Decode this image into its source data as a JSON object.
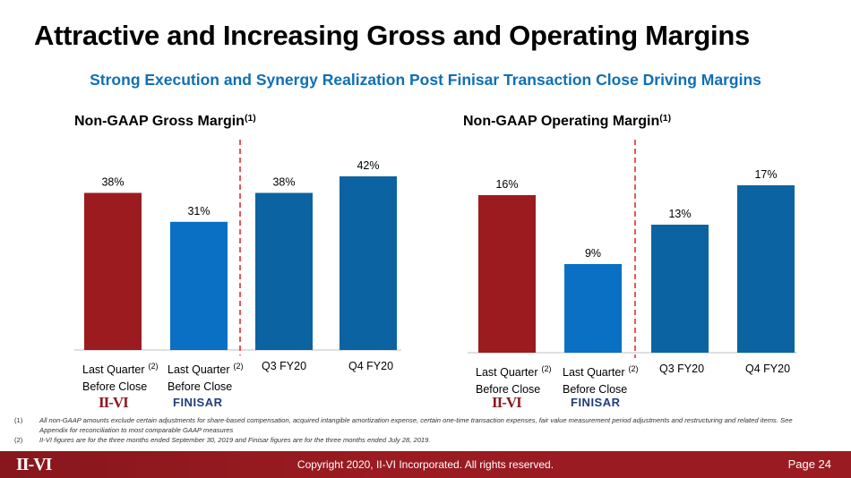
{
  "title": "Attractive and Increasing Gross and Operating Margins",
  "subtitle": "Strong Execution and Synergy Realization Post Finisar Transaction Close Driving Margins",
  "colors": {
    "red": "#9b1b1f",
    "lightblue": "#0a70c4",
    "blue": "#0b64a1",
    "dashed": "#e03030"
  },
  "logos": {
    "iivi": "II-VI",
    "finisar": "FINISAR"
  },
  "chart_data": [
    {
      "type": "bar",
      "title": "Non-GAAP Gross Margin",
      "title_footnote": "(1)",
      "categories": [
        {
          "line1": "Last Quarter",
          "line2": "Before Close",
          "footnote": "(2)"
        },
        {
          "line1": "Last Quarter",
          "line2": "Before Close",
          "footnote": "(2)"
        },
        {
          "line1": "Q3 FY20",
          "line2": "",
          "footnote": ""
        },
        {
          "line1": "Q4 FY20",
          "line2": "",
          "footnote": ""
        }
      ],
      "values": [
        38,
        31,
        38,
        42
      ],
      "data_labels": [
        "38%",
        "31%",
        "38%",
        "42%"
      ],
      "ylim": [
        0,
        45
      ],
      "unit": "%",
      "grid": false,
      "divider_after_category": 2
    },
    {
      "type": "bar",
      "title": "Non-GAAP Operating Margin",
      "title_footnote": "(1)",
      "categories": [
        {
          "line1": "Last Quarter",
          "line2": "Before Close",
          "footnote": "(2)"
        },
        {
          "line1": "Last Quarter",
          "line2": "Before Close",
          "footnote": "(2)"
        },
        {
          "line1": "Q3 FY20",
          "line2": "",
          "footnote": ""
        },
        {
          "line1": "Q4 FY20",
          "line2": "",
          "footnote": ""
        }
      ],
      "values": [
        16,
        9,
        13,
        17
      ],
      "data_labels": [
        "16%",
        "9%",
        "13%",
        "17%"
      ],
      "ylim": [
        0,
        18.5
      ],
      "unit": "%",
      "grid": false,
      "divider_after_category": 2
    }
  ],
  "footnotes": [
    {
      "num": "(1)",
      "text": "All non-GAAP amounts exclude certain adjustments for share-based compensation, acquired intangible amortization expense, certain one-time transaction expenses, fair value measurement period adjustments and restructuring and related items. See Appendix for reconciliation to most comparable GAAP measures"
    },
    {
      "num": "(2)",
      "text": "II-VI figures are for the three months ended September 30, 2019 and Finisar figures are for the three months ended July 28, 2019."
    }
  ],
  "footer": {
    "logo": "II-VI",
    "copyright": "Copyright 2020, II-VI Incorporated. All rights reserved.",
    "page": "Page 24"
  }
}
